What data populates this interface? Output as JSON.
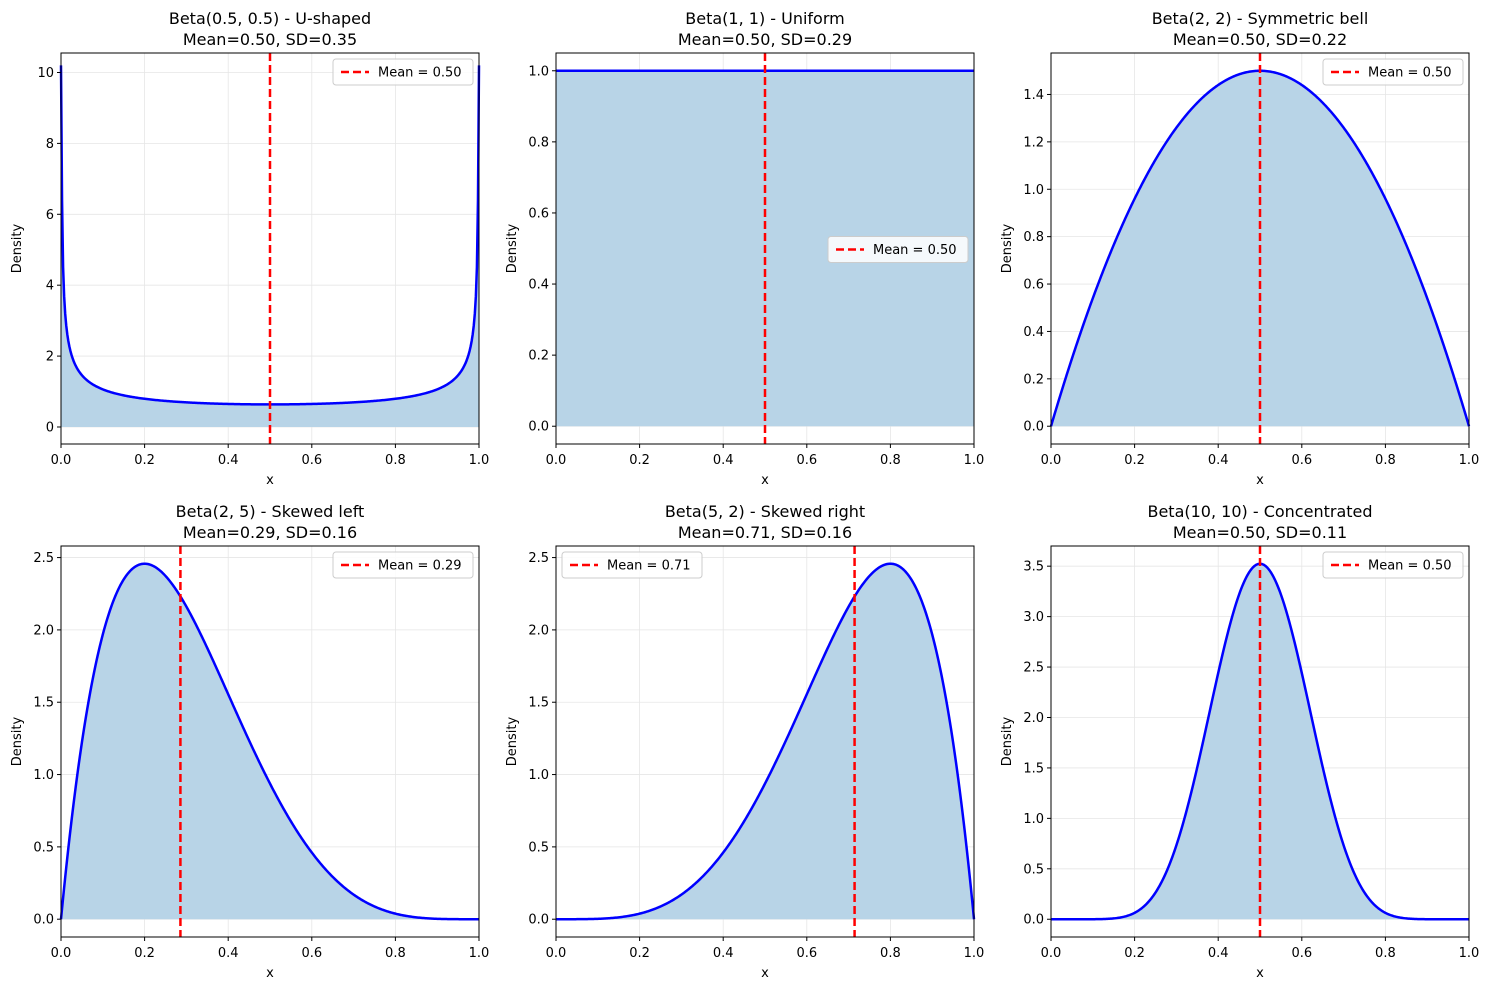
{
  "chart_data": [
    {
      "type": "line",
      "title": "Beta(0.5, 0.5) - U-shaped",
      "subtitle": "Mean=0.50, SD=0.35",
      "alpha": 0.5,
      "beta": 0.5,
      "mean": 0.5,
      "xlabel": "x",
      "ylabel": "Density",
      "xlim": [
        0,
        1
      ],
      "ylim": [
        -0.48,
        10.55
      ],
      "xticks": [
        "0.0",
        "0.2",
        "0.4",
        "0.6",
        "0.8",
        "1.0"
      ],
      "yticks": [
        0,
        2,
        4,
        6,
        8,
        10
      ],
      "ytick_labels": [
        "0",
        "2",
        "4",
        "6",
        "8",
        "10"
      ],
      "legend_label": "Mean = 0.50",
      "legend_position": "top-right",
      "grid": true
    },
    {
      "type": "line",
      "title": "Beta(1, 1) - Uniform",
      "subtitle": "Mean=0.50, SD=0.29",
      "alpha": 1,
      "beta": 1,
      "mean": 0.5,
      "xlabel": "x",
      "ylabel": "Density",
      "xlim": [
        0,
        1
      ],
      "ylim": [
        -0.05,
        1.05
      ],
      "xticks": [
        "0.0",
        "0.2",
        "0.4",
        "0.6",
        "0.8",
        "1.0"
      ],
      "yticks": [
        0,
        0.2,
        0.4,
        0.6,
        0.8,
        1.0
      ],
      "ytick_labels": [
        "0.0",
        "0.2",
        "0.4",
        "0.6",
        "0.8",
        "1.0"
      ],
      "legend_label": "Mean = 0.50",
      "legend_position": "center-right",
      "grid": true
    },
    {
      "type": "line",
      "title": "Beta(2, 2) - Symmetric bell",
      "subtitle": "Mean=0.50, SD=0.22",
      "alpha": 2,
      "beta": 2,
      "mean": 0.5,
      "xlabel": "x",
      "ylabel": "Density",
      "xlim": [
        0,
        1
      ],
      "ylim": [
        -0.075,
        1.575
      ],
      "xticks": [
        "0.0",
        "0.2",
        "0.4",
        "0.6",
        "0.8",
        "1.0"
      ],
      "yticks": [
        0,
        0.2,
        0.4,
        0.6,
        0.8,
        1.0,
        1.2,
        1.4
      ],
      "ytick_labels": [
        "0.0",
        "0.2",
        "0.4",
        "0.6",
        "0.8",
        "1.0",
        "1.2",
        "1.4"
      ],
      "legend_label": "Mean = 0.50",
      "legend_position": "top-right",
      "grid": true
    },
    {
      "type": "line",
      "title": "Beta(2, 5) - Skewed left",
      "subtitle": "Mean=0.29, SD=0.16",
      "alpha": 2,
      "beta": 5,
      "mean": 0.2857,
      "xlabel": "x",
      "ylabel": "Density",
      "xlim": [
        0,
        1
      ],
      "ylim": [
        -0.123,
        2.58
      ],
      "xticks": [
        "0.0",
        "0.2",
        "0.4",
        "0.6",
        "0.8",
        "1.0"
      ],
      "yticks": [
        0,
        0.5,
        1.0,
        1.5,
        2.0,
        2.5
      ],
      "ytick_labels": [
        "0.0",
        "0.5",
        "1.0",
        "1.5",
        "2.0",
        "2.5"
      ],
      "legend_label": "Mean = 0.29",
      "legend_position": "top-right",
      "grid": true
    },
    {
      "type": "line",
      "title": "Beta(5, 2) - Skewed right",
      "subtitle": "Mean=0.71, SD=0.16",
      "alpha": 5,
      "beta": 2,
      "mean": 0.7143,
      "xlabel": "x",
      "ylabel": "Density",
      "xlim": [
        0,
        1
      ],
      "ylim": [
        -0.123,
        2.58
      ],
      "xticks": [
        "0.0",
        "0.2",
        "0.4",
        "0.6",
        "0.8",
        "1.0"
      ],
      "yticks": [
        0,
        0.5,
        1.0,
        1.5,
        2.0,
        2.5
      ],
      "ytick_labels": [
        "0.0",
        "0.5",
        "1.0",
        "1.5",
        "2.0",
        "2.5"
      ],
      "legend_label": "Mean = 0.71",
      "legend_position": "top-left",
      "grid": true
    },
    {
      "type": "line",
      "title": "Beta(10, 10) - Concentrated",
      "subtitle": "Mean=0.50, SD=0.11",
      "alpha": 10,
      "beta": 10,
      "mean": 0.5,
      "xlabel": "x",
      "ylabel": "Density",
      "xlim": [
        0,
        1
      ],
      "ylim": [
        -0.176,
        3.7
      ],
      "xticks": [
        "0.0",
        "0.2",
        "0.4",
        "0.6",
        "0.8",
        "1.0"
      ],
      "yticks": [
        0,
        0.5,
        1.0,
        1.5,
        2.0,
        2.5,
        3.0,
        3.5
      ],
      "ytick_labels": [
        "0.0",
        "0.5",
        "1.0",
        "1.5",
        "2.0",
        "2.5",
        "3.0",
        "3.5"
      ],
      "legend_label": "Mean = 0.50",
      "legend_position": "top-right",
      "grid": true
    }
  ],
  "colors": {
    "curve": "#0000ff",
    "fill": "#b8d4e7",
    "mean_line": "#ff0000",
    "grid": "#e6e6e6",
    "axes": "#000000"
  }
}
